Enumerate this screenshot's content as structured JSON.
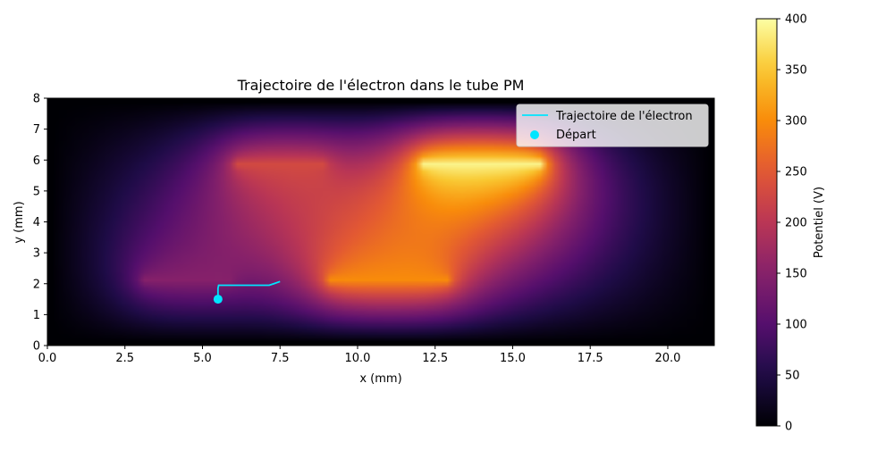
{
  "chart_data": {
    "type": "heatmap",
    "title": "Trajectoire de l'électron dans le tube PM",
    "xlabel": "x (mm)",
    "ylabel": "y (mm)",
    "xlim": [
      0,
      21.5
    ],
    "ylim": [
      0,
      8
    ],
    "x_ticks": [
      0.0,
      2.5,
      5.0,
      7.5,
      10.0,
      12.5,
      15.0,
      17.5,
      20.0
    ],
    "x_tick_labels": [
      "0.0",
      "2.5",
      "5.0",
      "7.5",
      "10.0",
      "12.5",
      "15.0",
      "17.5",
      "20.0"
    ],
    "y_ticks": [
      0,
      1,
      2,
      3,
      4,
      5,
      6,
      7,
      8
    ],
    "y_tick_labels": [
      "0",
      "1",
      "2",
      "3",
      "4",
      "5",
      "6",
      "7",
      "8"
    ],
    "colormap": "inferno",
    "colorbar": {
      "label": "Potentiel (V)",
      "range": [
        0,
        400
      ],
      "ticks": [
        0,
        50,
        100,
        150,
        200,
        250,
        300,
        350,
        400
      ],
      "tick_labels": [
        "0",
        "50",
        "100",
        "150",
        "200",
        "250",
        "300",
        "350",
        "400"
      ]
    },
    "electrodes": [
      {
        "x": [
          3,
          6
        ],
        "y": 2.1,
        "potential": 150
      },
      {
        "x": [
          6,
          9
        ],
        "y": 5.9,
        "potential": 230
      },
      {
        "x": [
          9,
          13
        ],
        "y": 2.1,
        "potential": 300
      },
      {
        "x": [
          12,
          16
        ],
        "y": 5.9,
        "potential": 390
      }
    ],
    "series": [
      {
        "name": "Trajectoire de l'électron",
        "color": "#00e5ff",
        "x": [
          5.5,
          5.5,
          5.52,
          6.0,
          6.5,
          7.0,
          7.15,
          7.3,
          7.5
        ],
        "y": [
          1.5,
          1.85,
          1.95,
          1.95,
          1.95,
          1.95,
          1.95,
          2.0,
          2.07
        ]
      }
    ],
    "start_point": {
      "name": "Départ",
      "x": 5.5,
      "y": 1.5,
      "color": "#00e5ff"
    },
    "legend": {
      "position": "upper-right",
      "entries": [
        "Trajectoire de l'électron",
        "Départ"
      ]
    }
  }
}
